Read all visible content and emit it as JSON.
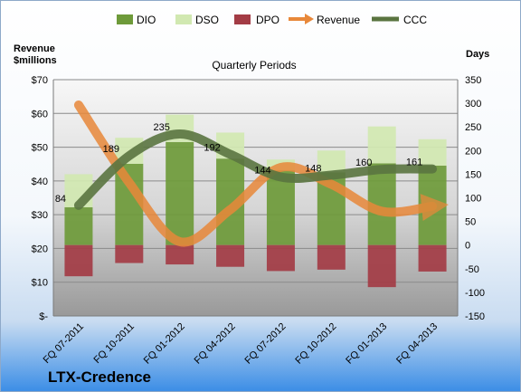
{
  "chart_data": {
    "type": "bar",
    "title": "Quarterly Periods",
    "company": "LTX-Credence",
    "left_axis_label": [
      "Revenue",
      "$millions"
    ],
    "right_axis_label": "Days",
    "categories": [
      "FQ 07-2011",
      "FQ 10-2011",
      "FQ 01-2012",
      "FQ 04-2012",
      "FQ 07-2012",
      "FQ 10-2012",
      "FQ 01-2013",
      "FQ 04-2013"
    ],
    "left_ylim": [
      0,
      70
    ],
    "left_ticks": [
      0,
      10,
      20,
      30,
      40,
      50,
      60,
      70
    ],
    "left_tick_labels": [
      "$-",
      "$10",
      "$20",
      "$30",
      "$40",
      "$50",
      "$60",
      "$70"
    ],
    "right_ylim": [
      -150,
      350
    ],
    "right_ticks": [
      -150,
      -100,
      -50,
      0,
      50,
      100,
      150,
      200,
      250,
      300,
      350
    ],
    "right_tick_labels": [
      "-150",
      "-100",
      "-50",
      "0",
      "50",
      "100",
      "150",
      "200",
      "250",
      "300",
      "350"
    ],
    "series": [
      {
        "name": "DIO",
        "axis": "right",
        "kind": "stacked-bar",
        "color": "#6e9a3a",
        "values": [
          80,
          172,
          218,
          183,
          158,
          154,
          173,
          168
        ]
      },
      {
        "name": "DSO",
        "axis": "right",
        "kind": "stacked-bar",
        "color": "#d1e8b1",
        "values": [
          70,
          55,
          58,
          55,
          23,
          46,
          78,
          56
        ]
      },
      {
        "name": "DPO",
        "axis": "right",
        "kind": "negative-bar",
        "color": "#a33c45",
        "values": [
          -66,
          -38,
          -41,
          -46,
          -55,
          -52,
          -89,
          -56
        ]
      },
      {
        "name": "Revenue",
        "axis": "left",
        "kind": "line",
        "color": "#e8883a",
        "values": [
          62.5,
          39.5,
          22.0,
          31.5,
          44.0,
          39.0,
          31.0,
          32.5
        ]
      },
      {
        "name": "CCC",
        "axis": "right",
        "kind": "line",
        "color": "#5a7440",
        "values": [
          84,
          189,
          235,
          192,
          144,
          148,
          160,
          161
        ]
      }
    ],
    "ccc_labels": [
      "84",
      "189",
      "235",
      "192",
      "144",
      "148",
      "160",
      "161"
    ],
    "grid": true,
    "legend_position": "top"
  }
}
